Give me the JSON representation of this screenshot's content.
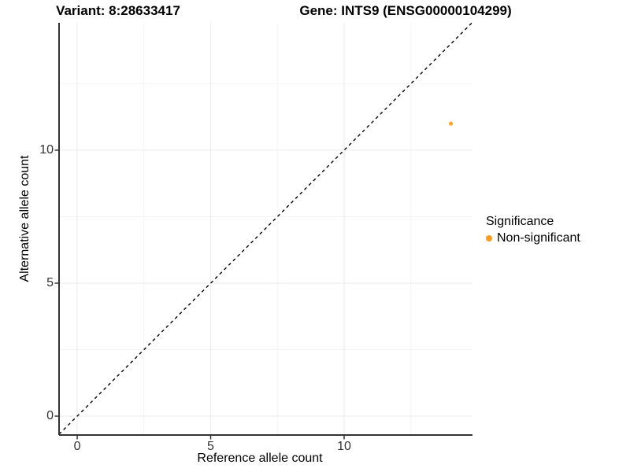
{
  "figure": {
    "title_left": "Variant: 8:28633417",
    "title_right": "Gene: INTS9 (ENSG00000104299)"
  },
  "legend": {
    "title": "Significance",
    "items": [
      {
        "label": "Non-significant",
        "color": "#F99C20"
      }
    ]
  },
  "chart_data": {
    "type": "scatter",
    "title_left": "Variant: 8:28633417",
    "title_right": "Gene: INTS9 (ENSG00000104299)",
    "xlabel": "Reference allele count",
    "ylabel": "Alternative allele count",
    "xlim": [
      -0.68,
      14.81
    ],
    "ylim": [
      -0.71,
      14.79
    ],
    "x_ticks": [
      0,
      5,
      10
    ],
    "y_ticks": [
      0,
      5,
      10
    ],
    "x_minor_ticks": [
      2.5,
      7.5,
      12.5
    ],
    "y_minor_ticks": [
      2.5,
      7.5,
      12.5
    ],
    "grid": "on",
    "legend_position": "right",
    "series": [
      {
        "name": "Non-significant",
        "marker": "circle",
        "color": "#F99C20",
        "points": [
          {
            "x": 14,
            "y": 11
          }
        ]
      }
    ],
    "reference_line": {
      "equation": "y = x",
      "style": "dashed",
      "color": "#000000"
    }
  },
  "colors": {
    "accent": "#F99C20",
    "axis_line": "#333333",
    "grid_major": "#EAEAEA",
    "grid_minor": "#F4F4F4",
    "tick_label": "#333333",
    "background": "#FFFFFF"
  }
}
